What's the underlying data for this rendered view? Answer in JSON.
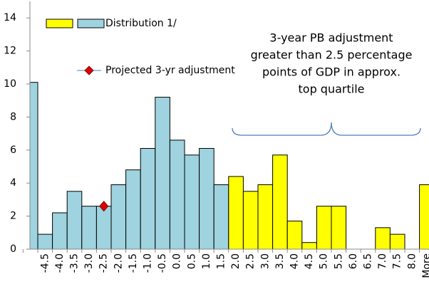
{
  "chart_data": {
    "type": "bar",
    "categories": [
      null,
      "-4.5",
      "-4.0",
      "-3.5",
      "-3.0",
      "-2.5",
      "-2.0",
      "-1.5",
      "-1.0",
      "-0.5",
      "0.0",
      "0.5",
      "1.0",
      "1.5",
      "2.0",
      "2.5",
      "3.0",
      "3.5",
      "4.0",
      "4.5",
      "5.0",
      "5.5",
      "6.0",
      "6.5",
      "7.0",
      "7.5",
      "8.0",
      "More"
    ],
    "series": [
      {
        "name": "Distribution 1/",
        "type": "bar",
        "colors": [
          "#9ed3df",
          "#9ed3df",
          "#9ed3df",
          "#9ed3df",
          "#9ed3df",
          "#9ed3df",
          "#9ed3df",
          "#9ed3df",
          "#9ed3df",
          "#9ed3df",
          "#9ed3df",
          "#9ed3df",
          "#9ed3df",
          "#9ed3df",
          "#ffff00",
          "#ffff00",
          "#ffff00",
          "#ffff00",
          "#ffff00",
          "#ffff00",
          "#ffff00",
          "#ffff00",
          "#ffff00",
          "#ffff00",
          "#ffff00",
          "#ffff00",
          "#ffff00",
          "#ffff00"
        ],
        "values": [
          10.1,
          0.9,
          2.2,
          3.5,
          2.6,
          2.6,
          3.9,
          4.8,
          6.1,
          9.2,
          6.6,
          5.7,
          6.1,
          3.9,
          4.4,
          3.5,
          3.9,
          5.7,
          1.7,
          0.4,
          2.6,
          2.6,
          0,
          0,
          1.3,
          0.9,
          0,
          3.9
        ]
      },
      {
        "name": "Projected 3-yr adjustment",
        "type": "scatter",
        "color": "#e00000",
        "line_color": "#9ec3e6",
        "values": [
          null,
          null,
          null,
          null,
          null,
          2.6,
          null,
          null,
          null,
          null,
          null,
          null,
          null,
          null,
          null,
          null,
          null,
          null,
          null,
          null,
          null,
          null,
          null,
          null,
          null,
          null,
          null,
          null
        ]
      }
    ],
    "annotation": [
      "3-year PB adjustment",
      "greater than 2.5 percentage",
      "points of GDP in approx.",
      "top quartile"
    ],
    "ylim": [
      0,
      15
    ],
    "yticks": [
      0,
      2,
      4,
      6,
      8,
      10,
      12,
      14
    ],
    "grid": false
  }
}
